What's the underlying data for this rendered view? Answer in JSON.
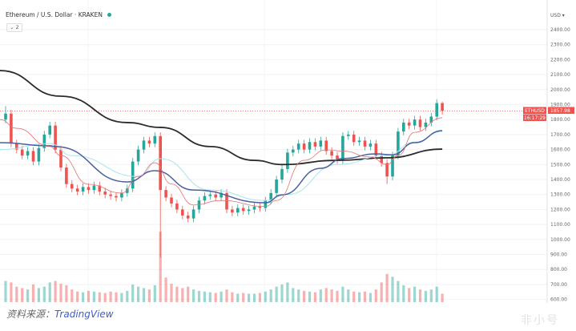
{
  "header": {
    "symbol_title": "Ethereum / U.S. Dollar · KRAKEN",
    "status_dot_color": "#26a69a",
    "indicators_collapse_label": "⌄ 2"
  },
  "footer": {
    "source_label": "资料来源：",
    "source_brand": "TradingView"
  },
  "watermark": "非小号",
  "chart_data": {
    "type": "candlestick",
    "title": "Ethereum / U.S. Dollar · KRAKEN",
    "currency_label": "USD ▾",
    "ylim": [
      600,
      2400
    ],
    "y_ticks": [
      "2400.00",
      "2300.00",
      "2200.00",
      "2100.00",
      "2000.00",
      "1900.00",
      "1800.00",
      "1700.00",
      "1600.00",
      "1500.00",
      "1400.00",
      "1300.00",
      "1200.00",
      "1100.00",
      "1000.00",
      "900.00",
      "800.00",
      "700.00",
      "600.00"
    ],
    "grid": true,
    "colors": {
      "up": "#26a69a",
      "down": "#ef5350",
      "ma_black": "#2b2b2b",
      "ma_blue": "#4a5fa0",
      "ma_cyan": "#a8e4ee",
      "ma_red": "#e57373"
    },
    "last_price": {
      "symbol": "ETHUSD",
      "price": "1857.98",
      "countdown": "16:17:29"
    },
    "open": [
      1800,
      1840,
      1640,
      1600,
      1560,
      1590,
      1520,
      1610,
      1700,
      1760,
      1600,
      1480,
      1370,
      1340,
      1320,
      1350,
      1330,
      1360,
      1320,
      1300,
      1290,
      1280,
      1310,
      1340,
      1520,
      1600,
      1660,
      1640,
      1690,
      1330,
      1280,
      1240,
      1200,
      1160,
      1140,
      1200,
      1260,
      1290,
      1300,
      1280,
      1310,
      1200,
      1180,
      1210,
      1190,
      1200,
      1220,
      1210,
      1260,
      1310,
      1400,
      1470,
      1580,
      1600,
      1640,
      1600,
      1650,
      1620,
      1660,
      1590,
      1560,
      1530,
      1690,
      1700,
      1650,
      1660,
      1620,
      1640,
      1560,
      1510,
      1420,
      1560,
      1720,
      1780,
      1760,
      1800,
      1750,
      1780,
      1820,
      1910
    ],
    "high": [
      1890,
      1865,
      1665,
      1625,
      1615,
      1615,
      1635,
      1725,
      1785,
      1785,
      1625,
      1505,
      1395,
      1365,
      1375,
      1375,
      1385,
      1385,
      1345,
      1325,
      1315,
      1335,
      1365,
      1545,
      1625,
      1685,
      1685,
      1715,
      1715,
      1355,
      1305,
      1265,
      1225,
      1185,
      1225,
      1285,
      1315,
      1325,
      1325,
      1335,
      1335,
      1225,
      1235,
      1235,
      1225,
      1245,
      1245,
      1285,
      1335,
      1425,
      1495,
      1605,
      1625,
      1665,
      1665,
      1675,
      1675,
      1685,
      1685,
      1615,
      1585,
      1715,
      1725,
      1725,
      1685,
      1685,
      1665,
      1665,
      1585,
      1535,
      1585,
      1745,
      1805,
      1805,
      1825,
      1825,
      1805,
      1845,
      1935,
      1920
    ],
    "low": [
      1775,
      1615,
      1575,
      1535,
      1535,
      1495,
      1495,
      1585,
      1675,
      1575,
      1455,
      1345,
      1315,
      1295,
      1295,
      1305,
      1305,
      1295,
      1275,
      1265,
      1255,
      1255,
      1285,
      1315,
      1495,
      1575,
      1615,
      1615,
      880,
      1255,
      1215,
      1175,
      1135,
      1115,
      1115,
      1175,
      1235,
      1265,
      1255,
      1255,
      1175,
      1155,
      1155,
      1165,
      1165,
      1175,
      1185,
      1185,
      1235,
      1285,
      1375,
      1445,
      1555,
      1575,
      1575,
      1575,
      1595,
      1595,
      1565,
      1535,
      1505,
      1505,
      1665,
      1625,
      1625,
      1595,
      1595,
      1535,
      1485,
      1370,
      1395,
      1535,
      1695,
      1735,
      1735,
      1725,
      1725,
      1755,
      1795,
      1833
    ],
    "close": [
      1840,
      1640,
      1600,
      1560,
      1590,
      1520,
      1610,
      1700,
      1760,
      1600,
      1480,
      1370,
      1340,
      1320,
      1350,
      1330,
      1360,
      1320,
      1300,
      1290,
      1280,
      1310,
      1340,
      1520,
      1600,
      1660,
      1640,
      1690,
      1330,
      1280,
      1240,
      1200,
      1160,
      1140,
      1200,
      1260,
      1290,
      1300,
      1280,
      1310,
      1200,
      1180,
      1210,
      1190,
      1200,
      1220,
      1210,
      1260,
      1310,
      1400,
      1470,
      1580,
      1600,
      1640,
      1600,
      1650,
      1620,
      1660,
      1590,
      1560,
      1530,
      1690,
      1700,
      1650,
      1660,
      1620,
      1640,
      1560,
      1510,
      1420,
      1560,
      1720,
      1780,
      1760,
      1800,
      1750,
      1780,
      1820,
      1910,
      1858
    ],
    "volume": [
      30,
      28,
      22,
      20,
      18,
      25,
      20,
      22,
      28,
      30,
      26,
      24,
      18,
      15,
      14,
      16,
      15,
      14,
      13,
      15,
      14,
      13,
      16,
      25,
      22,
      20,
      18,
      24,
      100,
      35,
      26,
      22,
      20,
      22,
      18,
      16,
      15,
      14,
      13,
      15,
      18,
      14,
      12,
      13,
      12,
      12,
      13,
      15,
      18,
      22,
      25,
      28,
      20,
      18,
      16,
      15,
      14,
      18,
      20,
      18,
      16,
      22,
      18,
      15,
      14,
      15,
      13,
      18,
      28,
      40,
      36,
      30,
      24,
      20,
      22,
      18,
      16,
      18,
      22,
      12
    ],
    "moving_averages": [
      {
        "color_key": "ma_black",
        "points": [
          [
            0,
            2127
          ],
          [
            10,
            1956
          ],
          [
            22,
            1780
          ],
          [
            28,
            1748
          ],
          [
            37,
            1620
          ],
          [
            45,
            1528
          ],
          [
            50,
            1500
          ],
          [
            60,
            1528
          ],
          [
            69,
            1545
          ],
          [
            79,
            1603
          ]
        ]
      },
      {
        "color_key": "ma_cyan",
        "points": [
          [
            0,
            1600
          ],
          [
            8,
            1640
          ],
          [
            12,
            1560
          ],
          [
            24,
            1420
          ],
          [
            28,
            1540
          ],
          [
            37,
            1330
          ],
          [
            47,
            1260
          ],
          [
            51,
            1300
          ],
          [
            60,
            1500
          ],
          [
            69,
            1560
          ],
          [
            74,
            1650
          ],
          [
            79,
            1720
          ]
        ]
      },
      {
        "color_key": "ma_blue",
        "points": [
          [
            0,
            1646
          ],
          [
            8,
            1625
          ],
          [
            9,
            1620
          ],
          [
            22,
            1384
          ],
          [
            27,
            1459
          ],
          [
            34,
            1330
          ],
          [
            47,
            1245
          ],
          [
            50,
            1298
          ],
          [
            57,
            1475
          ],
          [
            61,
            1540
          ],
          [
            67,
            1571
          ],
          [
            70,
            1565
          ],
          [
            74,
            1646
          ],
          [
            79,
            1726
          ]
        ]
      },
      {
        "color_key": "ma_red",
        "points": [
          [
            0,
            1800
          ],
          [
            2,
            1742
          ],
          [
            8,
            1620
          ],
          [
            10,
            1560
          ],
          [
            15,
            1368
          ],
          [
            21,
            1310
          ],
          [
            24,
            1421
          ],
          [
            27,
            1512
          ],
          [
            30,
            1370
          ],
          [
            34,
            1230
          ],
          [
            39,
            1260
          ],
          [
            47,
            1220
          ],
          [
            49,
            1260
          ],
          [
            54,
            1528
          ],
          [
            58,
            1598
          ],
          [
            61,
            1590
          ],
          [
            66,
            1550
          ],
          [
            69,
            1500
          ],
          [
            71,
            1560
          ],
          [
            74,
            1715
          ],
          [
            79,
            1812
          ]
        ]
      }
    ]
  }
}
